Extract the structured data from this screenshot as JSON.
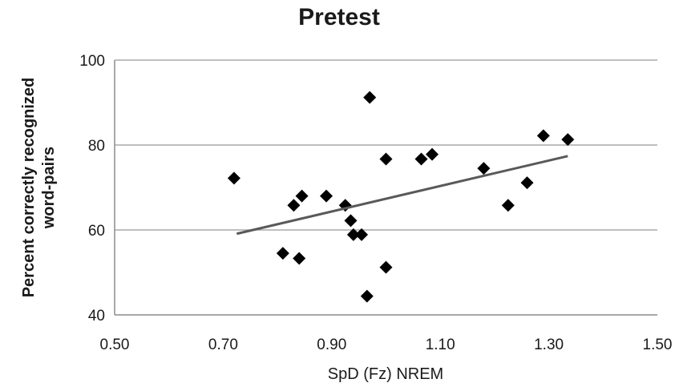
{
  "chart_data": {
    "type": "scatter",
    "title": "Pretest",
    "xlabel": "SpD (Fz) NREM",
    "ylabel_lines": [
      "Percent correctly recognized",
      "word-pairs"
    ],
    "xlim": [
      0.5,
      1.5
    ],
    "ylim": [
      40,
      100
    ],
    "x_ticks": [
      "0.50",
      "0.70",
      "0.90",
      "1.10",
      "1.30",
      "1.50"
    ],
    "y_ticks": [
      "40",
      "60",
      "80",
      "100"
    ],
    "grid": "horizontal",
    "points": [
      {
        "x": 0.72,
        "y": 72.2
      },
      {
        "x": 0.81,
        "y": 54.5
      },
      {
        "x": 0.83,
        "y": 65.8
      },
      {
        "x": 0.84,
        "y": 53.3
      },
      {
        "x": 0.845,
        "y": 68.0
      },
      {
        "x": 0.89,
        "y": 68.0
      },
      {
        "x": 0.925,
        "y": 65.8
      },
      {
        "x": 0.935,
        "y": 62.2
      },
      {
        "x": 0.94,
        "y": 58.9
      },
      {
        "x": 0.955,
        "y": 58.9
      },
      {
        "x": 0.965,
        "y": 44.4
      },
      {
        "x": 0.97,
        "y": 91.2
      },
      {
        "x": 1.0,
        "y": 51.2
      },
      {
        "x": 1.0,
        "y": 76.7
      },
      {
        "x": 1.065,
        "y": 76.7
      },
      {
        "x": 1.085,
        "y": 77.8
      },
      {
        "x": 1.18,
        "y": 74.5
      },
      {
        "x": 1.225,
        "y": 65.8
      },
      {
        "x": 1.26,
        "y": 71.1
      },
      {
        "x": 1.29,
        "y": 82.2
      },
      {
        "x": 1.335,
        "y": 81.3
      }
    ],
    "trendline": {
      "type": "linear",
      "x": [
        0.725,
        1.335
      ],
      "y": [
        59.1,
        77.4
      ]
    },
    "colors": {
      "marker": "#000000",
      "trendline": "#595959",
      "grid": "#999999"
    }
  }
}
